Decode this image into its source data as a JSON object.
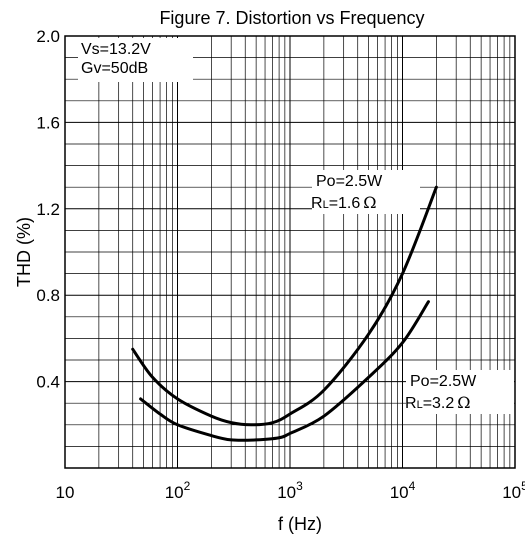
{
  "chart_data": {
    "type": "line",
    "title": "Figure 7. Distortion vs Frequency",
    "xlabel": "f (Hz)",
    "ylabel": "THD (%)",
    "xscale": "log",
    "xlim": [
      10,
      100000
    ],
    "ylim": [
      0,
      2.0
    ],
    "x_ticks": [
      {
        "value": 10,
        "base": "10",
        "exp": ""
      },
      {
        "value": 100,
        "base": "10",
        "exp": "2"
      },
      {
        "value": 1000,
        "base": "10",
        "exp": "3"
      },
      {
        "value": 10000,
        "base": "10",
        "exp": "4"
      },
      {
        "value": 100000,
        "base": "10",
        "exp": "5"
      }
    ],
    "y_ticks": [
      {
        "value": 0.4,
        "label": "0.4"
      },
      {
        "value": 0.8,
        "label": "0.8"
      },
      {
        "value": 1.2,
        "label": "1.2"
      },
      {
        "value": 1.6,
        "label": "1.6"
      },
      {
        "value": 2.0,
        "label": "2.0"
      }
    ],
    "grid": true,
    "conditions": {
      "line1": "Vs=13.2V",
      "line2": "Gv=50dB"
    },
    "series": [
      {
        "name": "Po=2.5W RL=1.6Ω",
        "label_line1": "Po=2.5W",
        "label_line2_main": "R",
        "label_line2_sub": "L",
        "label_line2_rest": "=1.6",
        "label_unit": "Ω",
        "x": [
          40,
          60,
          100,
          200,
          300,
          450,
          700,
          1000,
          2000,
          5000,
          10000,
          20000
        ],
        "y": [
          0.55,
          0.42,
          0.32,
          0.24,
          0.21,
          0.2,
          0.21,
          0.25,
          0.36,
          0.62,
          0.9,
          1.3
        ]
      },
      {
        "name": "Po=2.5W RL=3.2Ω",
        "label_line1": "Po=2.5W",
        "label_line2_main": "R",
        "label_line2_sub": "L",
        "label_line2_rest": "=3.2",
        "label_unit": "Ω",
        "x": [
          47,
          70,
          100,
          200,
          300,
          500,
          800,
          1000,
          2000,
          5000,
          10000,
          17000
        ],
        "y": [
          0.32,
          0.25,
          0.2,
          0.15,
          0.13,
          0.13,
          0.14,
          0.16,
          0.24,
          0.42,
          0.58,
          0.77
        ]
      }
    ]
  }
}
